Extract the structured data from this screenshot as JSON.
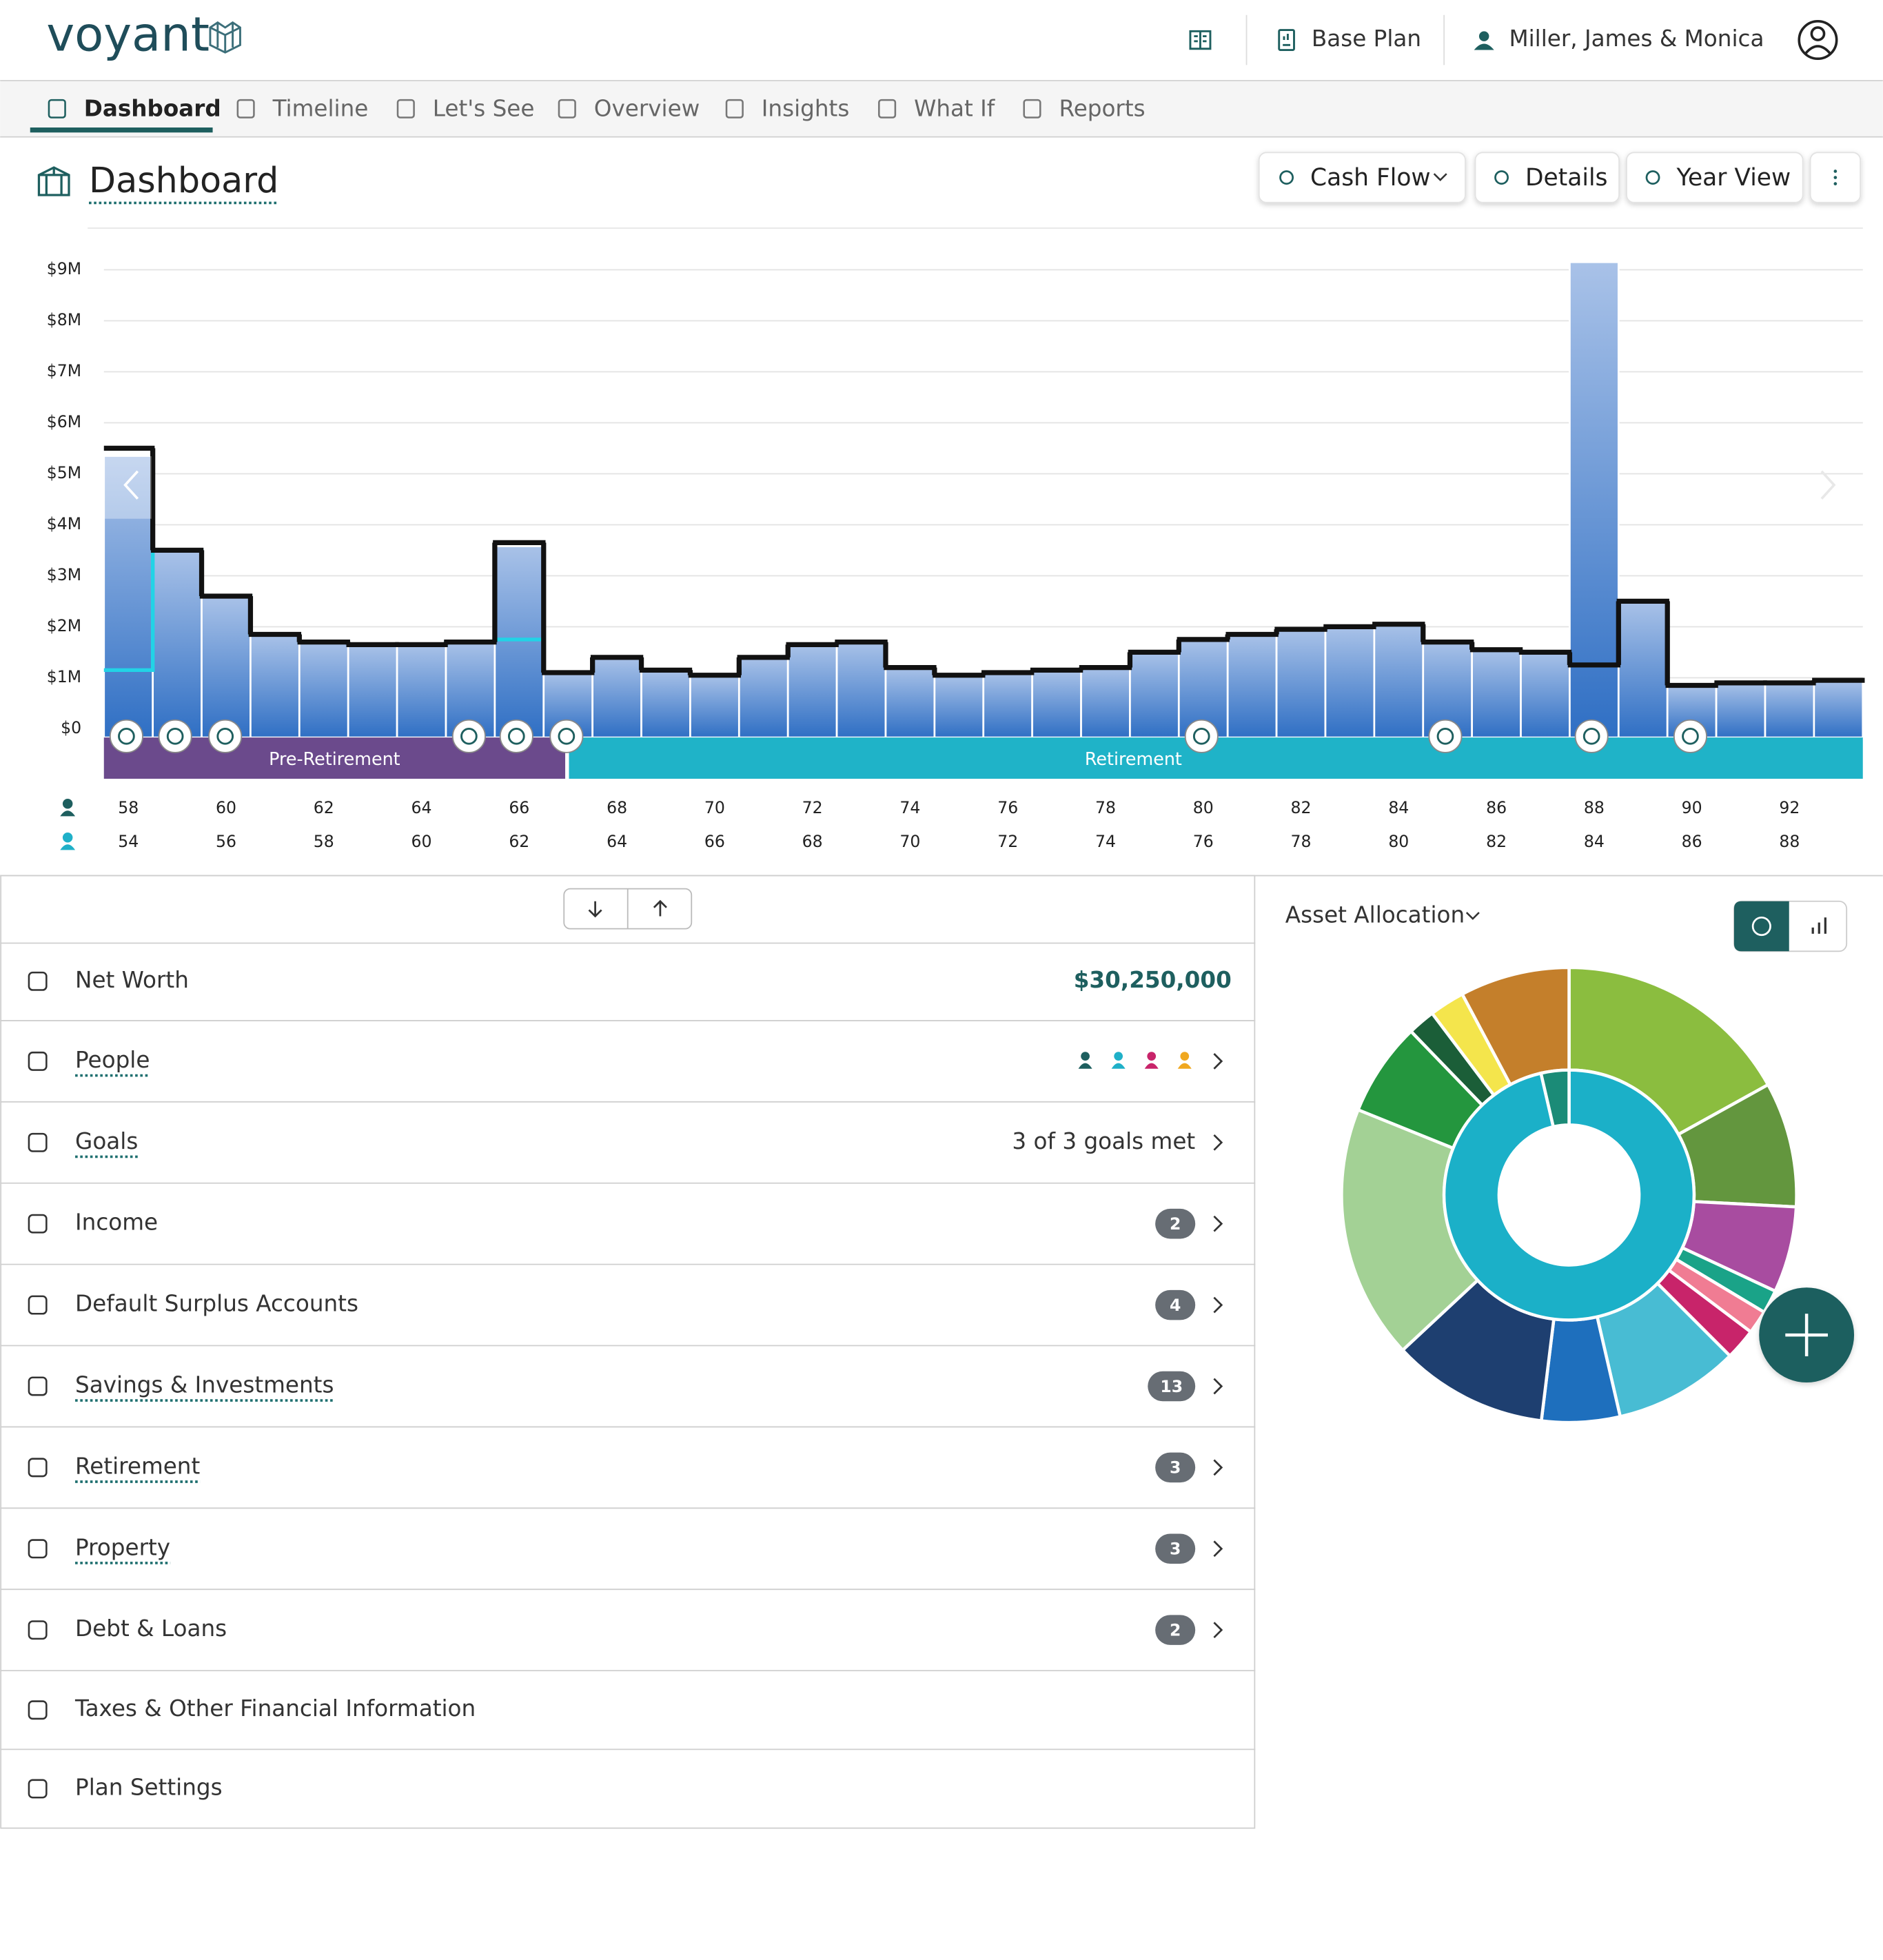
{
  "header": {
    "logo": "voyant",
    "plan": "Base Plan",
    "client": "Miller, James & Monica"
  },
  "nav": {
    "tabs": [
      "Dashboard",
      "Timeline",
      "Let's See",
      "Overview",
      "Insights",
      "What If",
      "Reports"
    ],
    "active": 0
  },
  "toolbar": {
    "title": "Dashboard",
    "buttons": [
      "Cash Flow",
      "Details",
      "Year View"
    ]
  },
  "chart_data": [
    {
      "type": "bar",
      "ylim": [
        0,
        9.5
      ],
      "yticks": [
        {
          "value": 0,
          "label": "$0"
        },
        {
          "value": 1,
          "label": "$1M"
        },
        {
          "value": 2,
          "label": "$2M"
        },
        {
          "value": 3,
          "label": "$3M"
        },
        {
          "value": 4,
          "label": "$4M"
        },
        {
          "value": 5,
          "label": "$5M"
        },
        {
          "value": 6,
          "label": "$6M"
        },
        {
          "value": 7,
          "label": "$7M"
        },
        {
          "value": 8,
          "label": "$8M"
        },
        {
          "value": 9,
          "label": "$9M"
        }
      ],
      "grid": true,
      "categories": [
        58,
        null,
        60,
        null,
        62,
        null,
        64,
        null,
        66,
        null,
        68,
        null,
        70,
        null,
        72,
        null,
        74,
        null,
        76,
        null,
        78,
        null,
        80,
        null,
        82,
        null,
        84,
        null,
        86,
        null,
        88,
        null,
        90,
        null,
        92,
        null
      ],
      "categories_2": [
        54,
        null,
        56,
        null,
        58,
        null,
        60,
        null,
        62,
        null,
        64,
        null,
        66,
        null,
        68,
        null,
        70,
        null,
        72,
        null,
        74,
        null,
        76,
        null,
        78,
        null,
        80,
        null,
        82,
        null,
        84,
        null,
        86,
        null,
        88,
        null
      ],
      "series": [
        {
          "color": "#2f6fc4",
          "values": [
            5.35,
            3.5,
            2.6,
            1.85,
            1.7,
            1.65,
            1.65,
            1.7,
            3.58,
            1.1,
            1.4,
            1.15,
            1.05,
            1.4,
            1.65,
            1.7,
            1.2,
            1.05,
            1.1,
            1.15,
            1.2,
            1.5,
            1.75,
            1.85,
            1.95,
            2.0,
            2.05,
            1.7,
            1.55,
            1.5,
            9.15,
            2.5,
            0.85,
            0.9,
            0.9,
            0.95
          ]
        },
        {
          "type": "step",
          "color": "#22d3e6",
          "values": [
            1.15,
            3.5,
            2.6,
            1.85,
            1.7,
            1.65,
            1.65,
            1.7,
            1.75,
            null,
            null,
            null,
            null,
            null,
            null,
            null,
            null,
            null,
            null,
            null,
            null,
            null,
            null,
            null,
            null,
            null,
            null,
            null,
            null,
            null,
            null,
            null,
            null,
            null,
            null,
            null
          ]
        },
        {
          "type": "step",
          "color": "#111111",
          "values": [
            5.5,
            3.5,
            2.6,
            1.85,
            1.7,
            1.65,
            1.65,
            1.7,
            3.65,
            1.1,
            1.4,
            1.15,
            1.05,
            1.4,
            1.65,
            1.7,
            1.2,
            1.05,
            1.1,
            1.15,
            1.2,
            1.5,
            1.75,
            1.85,
            1.95,
            2.0,
            2.05,
            1.7,
            1.55,
            1.5,
            1.25,
            2.5,
            0.85,
            0.9,
            0.9,
            0.95
          ]
        }
      ],
      "phases": [
        {
          "label": "Pre-Retirement",
          "color": "#6b4a8c"
        },
        {
          "label": "Retirement",
          "color": "#1fb3c8"
        }
      ]
    },
    {
      "type": "donut",
      "title": "Asset Allocation",
      "rings": [
        {
          "colors": [
            "#8bbd3f",
            "#63963e",
            "#a84ca0",
            "#1aa388",
            "#f07c93",
            "#c8246a",
            "#48bcd3",
            "#1e6fbd",
            "#1e3f70",
            "#a3d195",
            "#24963e",
            "#1b5e38",
            "#f4e54c",
            "#c47f2b"
          ],
          "values": [
            61,
            32,
            22,
            6,
            6,
            8,
            32,
            20,
            40,
            65,
            24,
            7,
            9,
            28
          ]
        },
        {
          "colors": [
            "#1bb0c8",
            "#1b8b77"
          ],
          "values": [
            347,
            13
          ]
        }
      ]
    }
  ],
  "summary": {
    "rows": [
      {
        "label": "Net Worth",
        "value": "$30,250,000"
      },
      {
        "label": "People",
        "link": true
      },
      {
        "label": "Goals",
        "link": true,
        "value": "3 of 3 goals met"
      },
      {
        "label": "Income",
        "badge": 2
      },
      {
        "label": "Default Surplus Accounts",
        "badge": 4
      },
      {
        "label": "Savings & Investments",
        "link": true,
        "badge": 13
      },
      {
        "label": "Retirement",
        "link": true,
        "badge": 3
      },
      {
        "label": "Property",
        "link": true,
        "badge": 3
      },
      {
        "label": "Debt & Loans",
        "badge": 2
      },
      {
        "label": "Taxes & Other Financial Information"
      },
      {
        "label": "Plan Settings"
      }
    ]
  }
}
